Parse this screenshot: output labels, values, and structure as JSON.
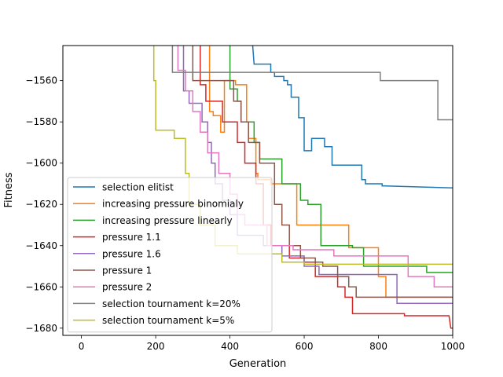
{
  "chart_data": {
    "type": "line",
    "title": "",
    "xlabel": "Generation",
    "ylabel": "Fitness",
    "xlim": [
      -50,
      1000
    ],
    "ylim": [
      -1683.5,
      -1543
    ],
    "xticks": [
      0,
      200,
      400,
      600,
      800,
      1000
    ],
    "yticks": [
      -1680,
      -1660,
      -1640,
      -1620,
      -1600,
      -1580,
      -1560
    ],
    "grid": false,
    "legend_position": "lower-left",
    "series": [
      {
        "name": "selection elitist",
        "color": "#1f77b4",
        "points": [
          [
            460,
            -1540
          ],
          [
            465,
            -1552
          ],
          [
            510,
            -1552
          ],
          [
            510,
            -1556
          ],
          [
            520,
            -1556
          ],
          [
            520,
            -1558
          ],
          [
            545,
            -1558
          ],
          [
            545,
            -1560
          ],
          [
            555,
            -1560
          ],
          [
            555,
            -1562
          ],
          [
            565,
            -1562
          ],
          [
            565,
            -1568
          ],
          [
            585,
            -1568
          ],
          [
            585,
            -1578
          ],
          [
            600,
            -1578
          ],
          [
            600,
            -1594
          ],
          [
            620,
            -1594
          ],
          [
            620,
            -1588
          ],
          [
            655,
            -1588
          ],
          [
            655,
            -1592
          ],
          [
            675,
            -1592
          ],
          [
            675,
            -1601
          ],
          [
            755,
            -1601
          ],
          [
            755,
            -1608
          ],
          [
            765,
            -1608
          ],
          [
            765,
            -1610
          ],
          [
            810,
            -1610
          ],
          [
            810,
            -1611
          ],
          [
            1000,
            -1612
          ]
        ]
      },
      {
        "name": "increasing pressure binomialy",
        "color": "#ff7f0e",
        "points": [
          [
            345,
            -1540
          ],
          [
            345,
            -1575
          ],
          [
            355,
            -1575
          ],
          [
            355,
            -1577
          ],
          [
            375,
            -1577
          ],
          [
            375,
            -1585
          ],
          [
            385,
            -1585
          ],
          [
            385,
            -1560
          ],
          [
            415,
            -1560
          ],
          [
            415,
            -1562
          ],
          [
            445,
            -1562
          ],
          [
            445,
            -1580
          ],
          [
            450,
            -1580
          ],
          [
            450,
            -1588
          ],
          [
            470,
            -1588
          ],
          [
            470,
            -1605
          ],
          [
            475,
            -1605
          ],
          [
            475,
            -1608
          ],
          [
            510,
            -1608
          ],
          [
            510,
            -1610
          ],
          [
            580,
            -1610
          ],
          [
            580,
            -1630
          ],
          [
            720,
            -1630
          ],
          [
            720,
            -1641
          ],
          [
            800,
            -1641
          ],
          [
            800,
            -1655
          ],
          [
            820,
            -1655
          ],
          [
            820,
            -1665
          ],
          [
            1000,
            -1665
          ]
        ]
      },
      {
        "name": "increasing pressure linearly",
        "color": "#2ca02c",
        "points": [
          [
            400,
            -1540
          ],
          [
            400,
            -1564
          ],
          [
            420,
            -1564
          ],
          [
            420,
            -1570
          ],
          [
            430,
            -1570
          ],
          [
            430,
            -1580
          ],
          [
            465,
            -1580
          ],
          [
            465,
            -1590
          ],
          [
            480,
            -1590
          ],
          [
            480,
            -1598
          ],
          [
            540,
            -1598
          ],
          [
            540,
            -1610
          ],
          [
            590,
            -1610
          ],
          [
            590,
            -1618
          ],
          [
            610,
            -1618
          ],
          [
            610,
            -1620
          ],
          [
            645,
            -1620
          ],
          [
            645,
            -1640
          ],
          [
            730,
            -1640
          ],
          [
            730,
            -1641
          ],
          [
            760,
            -1641
          ],
          [
            760,
            -1650
          ],
          [
            930,
            -1650
          ],
          [
            930,
            -1653
          ],
          [
            1000,
            -1653
          ]
        ]
      },
      {
        "name": "pressure 1.1",
        "color": "#d62728",
        "points": [
          [
            320,
            -1540
          ],
          [
            320,
            -1562
          ],
          [
            335,
            -1562
          ],
          [
            335,
            -1570
          ],
          [
            380,
            -1570
          ],
          [
            380,
            -1580
          ],
          [
            420,
            -1580
          ],
          [
            420,
            -1590
          ],
          [
            440,
            -1590
          ],
          [
            440,
            -1600
          ],
          [
            470,
            -1600
          ],
          [
            470,
            -1610
          ],
          [
            490,
            -1610
          ],
          [
            490,
            -1630
          ],
          [
            510,
            -1630
          ],
          [
            510,
            -1640
          ],
          [
            560,
            -1640
          ],
          [
            560,
            -1646
          ],
          [
            600,
            -1646
          ],
          [
            600,
            -1648
          ],
          [
            630,
            -1648
          ],
          [
            630,
            -1655
          ],
          [
            690,
            -1655
          ],
          [
            690,
            -1660
          ],
          [
            710,
            -1660
          ],
          [
            710,
            -1665
          ],
          [
            730,
            -1665
          ],
          [
            730,
            -1673
          ],
          [
            870,
            -1673
          ],
          [
            870,
            -1674
          ],
          [
            990,
            -1674
          ],
          [
            995,
            -1680
          ],
          [
            1000,
            -1680
          ]
        ]
      },
      {
        "name": "pressure 1.6",
        "color": "#9467bd",
        "points": [
          [
            275,
            -1540
          ],
          [
            275,
            -1565
          ],
          [
            290,
            -1565
          ],
          [
            290,
            -1571
          ],
          [
            325,
            -1571
          ],
          [
            325,
            -1580
          ],
          [
            340,
            -1580
          ],
          [
            340,
            -1590
          ],
          [
            350,
            -1590
          ],
          [
            350,
            -1600
          ],
          [
            360,
            -1600
          ],
          [
            360,
            -1610
          ],
          [
            380,
            -1610
          ],
          [
            380,
            -1618
          ],
          [
            400,
            -1618
          ],
          [
            400,
            -1625
          ],
          [
            420,
            -1625
          ],
          [
            420,
            -1635
          ],
          [
            490,
            -1635
          ],
          [
            490,
            -1640
          ],
          [
            540,
            -1640
          ],
          [
            540,
            -1645
          ],
          [
            600,
            -1645
          ],
          [
            600,
            -1650
          ],
          [
            640,
            -1650
          ],
          [
            640,
            -1654
          ],
          [
            850,
            -1654
          ],
          [
            850,
            -1668
          ],
          [
            1000,
            -1668
          ]
        ]
      },
      {
        "name": "pressure 1",
        "color": "#8c564b",
        "points": [
          [
            300,
            -1540
          ],
          [
            300,
            -1560
          ],
          [
            410,
            -1560
          ],
          [
            410,
            -1570
          ],
          [
            430,
            -1570
          ],
          [
            430,
            -1580
          ],
          [
            450,
            -1580
          ],
          [
            450,
            -1590
          ],
          [
            480,
            -1590
          ],
          [
            480,
            -1600
          ],
          [
            520,
            -1600
          ],
          [
            520,
            -1620
          ],
          [
            540,
            -1620
          ],
          [
            540,
            -1630
          ],
          [
            560,
            -1630
          ],
          [
            560,
            -1640
          ],
          [
            590,
            -1640
          ],
          [
            590,
            -1646
          ],
          [
            630,
            -1646
          ],
          [
            630,
            -1648
          ],
          [
            650,
            -1648
          ],
          [
            650,
            -1650
          ],
          [
            690,
            -1650
          ],
          [
            690,
            -1655
          ],
          [
            720,
            -1655
          ],
          [
            720,
            -1660
          ],
          [
            740,
            -1660
          ],
          [
            740,
            -1665
          ],
          [
            1000,
            -1665
          ]
        ]
      },
      {
        "name": "pressure 2",
        "color": "#e377c2",
        "points": [
          [
            260,
            -1540
          ],
          [
            260,
            -1555
          ],
          [
            280,
            -1555
          ],
          [
            280,
            -1565
          ],
          [
            300,
            -1565
          ],
          [
            300,
            -1575
          ],
          [
            320,
            -1575
          ],
          [
            320,
            -1585
          ],
          [
            340,
            -1585
          ],
          [
            340,
            -1595
          ],
          [
            370,
            -1595
          ],
          [
            370,
            -1605
          ],
          [
            400,
            -1605
          ],
          [
            400,
            -1615
          ],
          [
            420,
            -1615
          ],
          [
            420,
            -1625
          ],
          [
            440,
            -1625
          ],
          [
            440,
            -1630
          ],
          [
            500,
            -1630
          ],
          [
            500,
            -1640
          ],
          [
            570,
            -1640
          ],
          [
            570,
            -1642
          ],
          [
            680,
            -1642
          ],
          [
            680,
            -1645
          ],
          [
            880,
            -1645
          ],
          [
            880,
            -1655
          ],
          [
            950,
            -1655
          ],
          [
            950,
            -1660
          ],
          [
            1000,
            -1660
          ]
        ]
      },
      {
        "name": "selection tournament k=20%",
        "color": "#7f7f7f",
        "points": [
          [
            245,
            -1540
          ],
          [
            245,
            -1556
          ],
          [
            805,
            -1556
          ],
          [
            805,
            -1560
          ],
          [
            960,
            -1560
          ],
          [
            960,
            -1579
          ],
          [
            1000,
            -1579
          ]
        ]
      },
      {
        "name": "selection tournament k=5%",
        "color": "#bcbd22",
        "points": [
          [
            195,
            -1540
          ],
          [
            195,
            -1560
          ],
          [
            200,
            -1560
          ],
          [
            200,
            -1584
          ],
          [
            250,
            -1584
          ],
          [
            250,
            -1588
          ],
          [
            280,
            -1588
          ],
          [
            280,
            -1605
          ],
          [
            290,
            -1605
          ],
          [
            290,
            -1620
          ],
          [
            320,
            -1620
          ],
          [
            320,
            -1630
          ],
          [
            360,
            -1630
          ],
          [
            360,
            -1640
          ],
          [
            420,
            -1640
          ],
          [
            420,
            -1644
          ],
          [
            540,
            -1644
          ],
          [
            540,
            -1648
          ],
          [
            600,
            -1648
          ],
          [
            600,
            -1649
          ],
          [
            1000,
            -1649
          ]
        ]
      }
    ]
  }
}
